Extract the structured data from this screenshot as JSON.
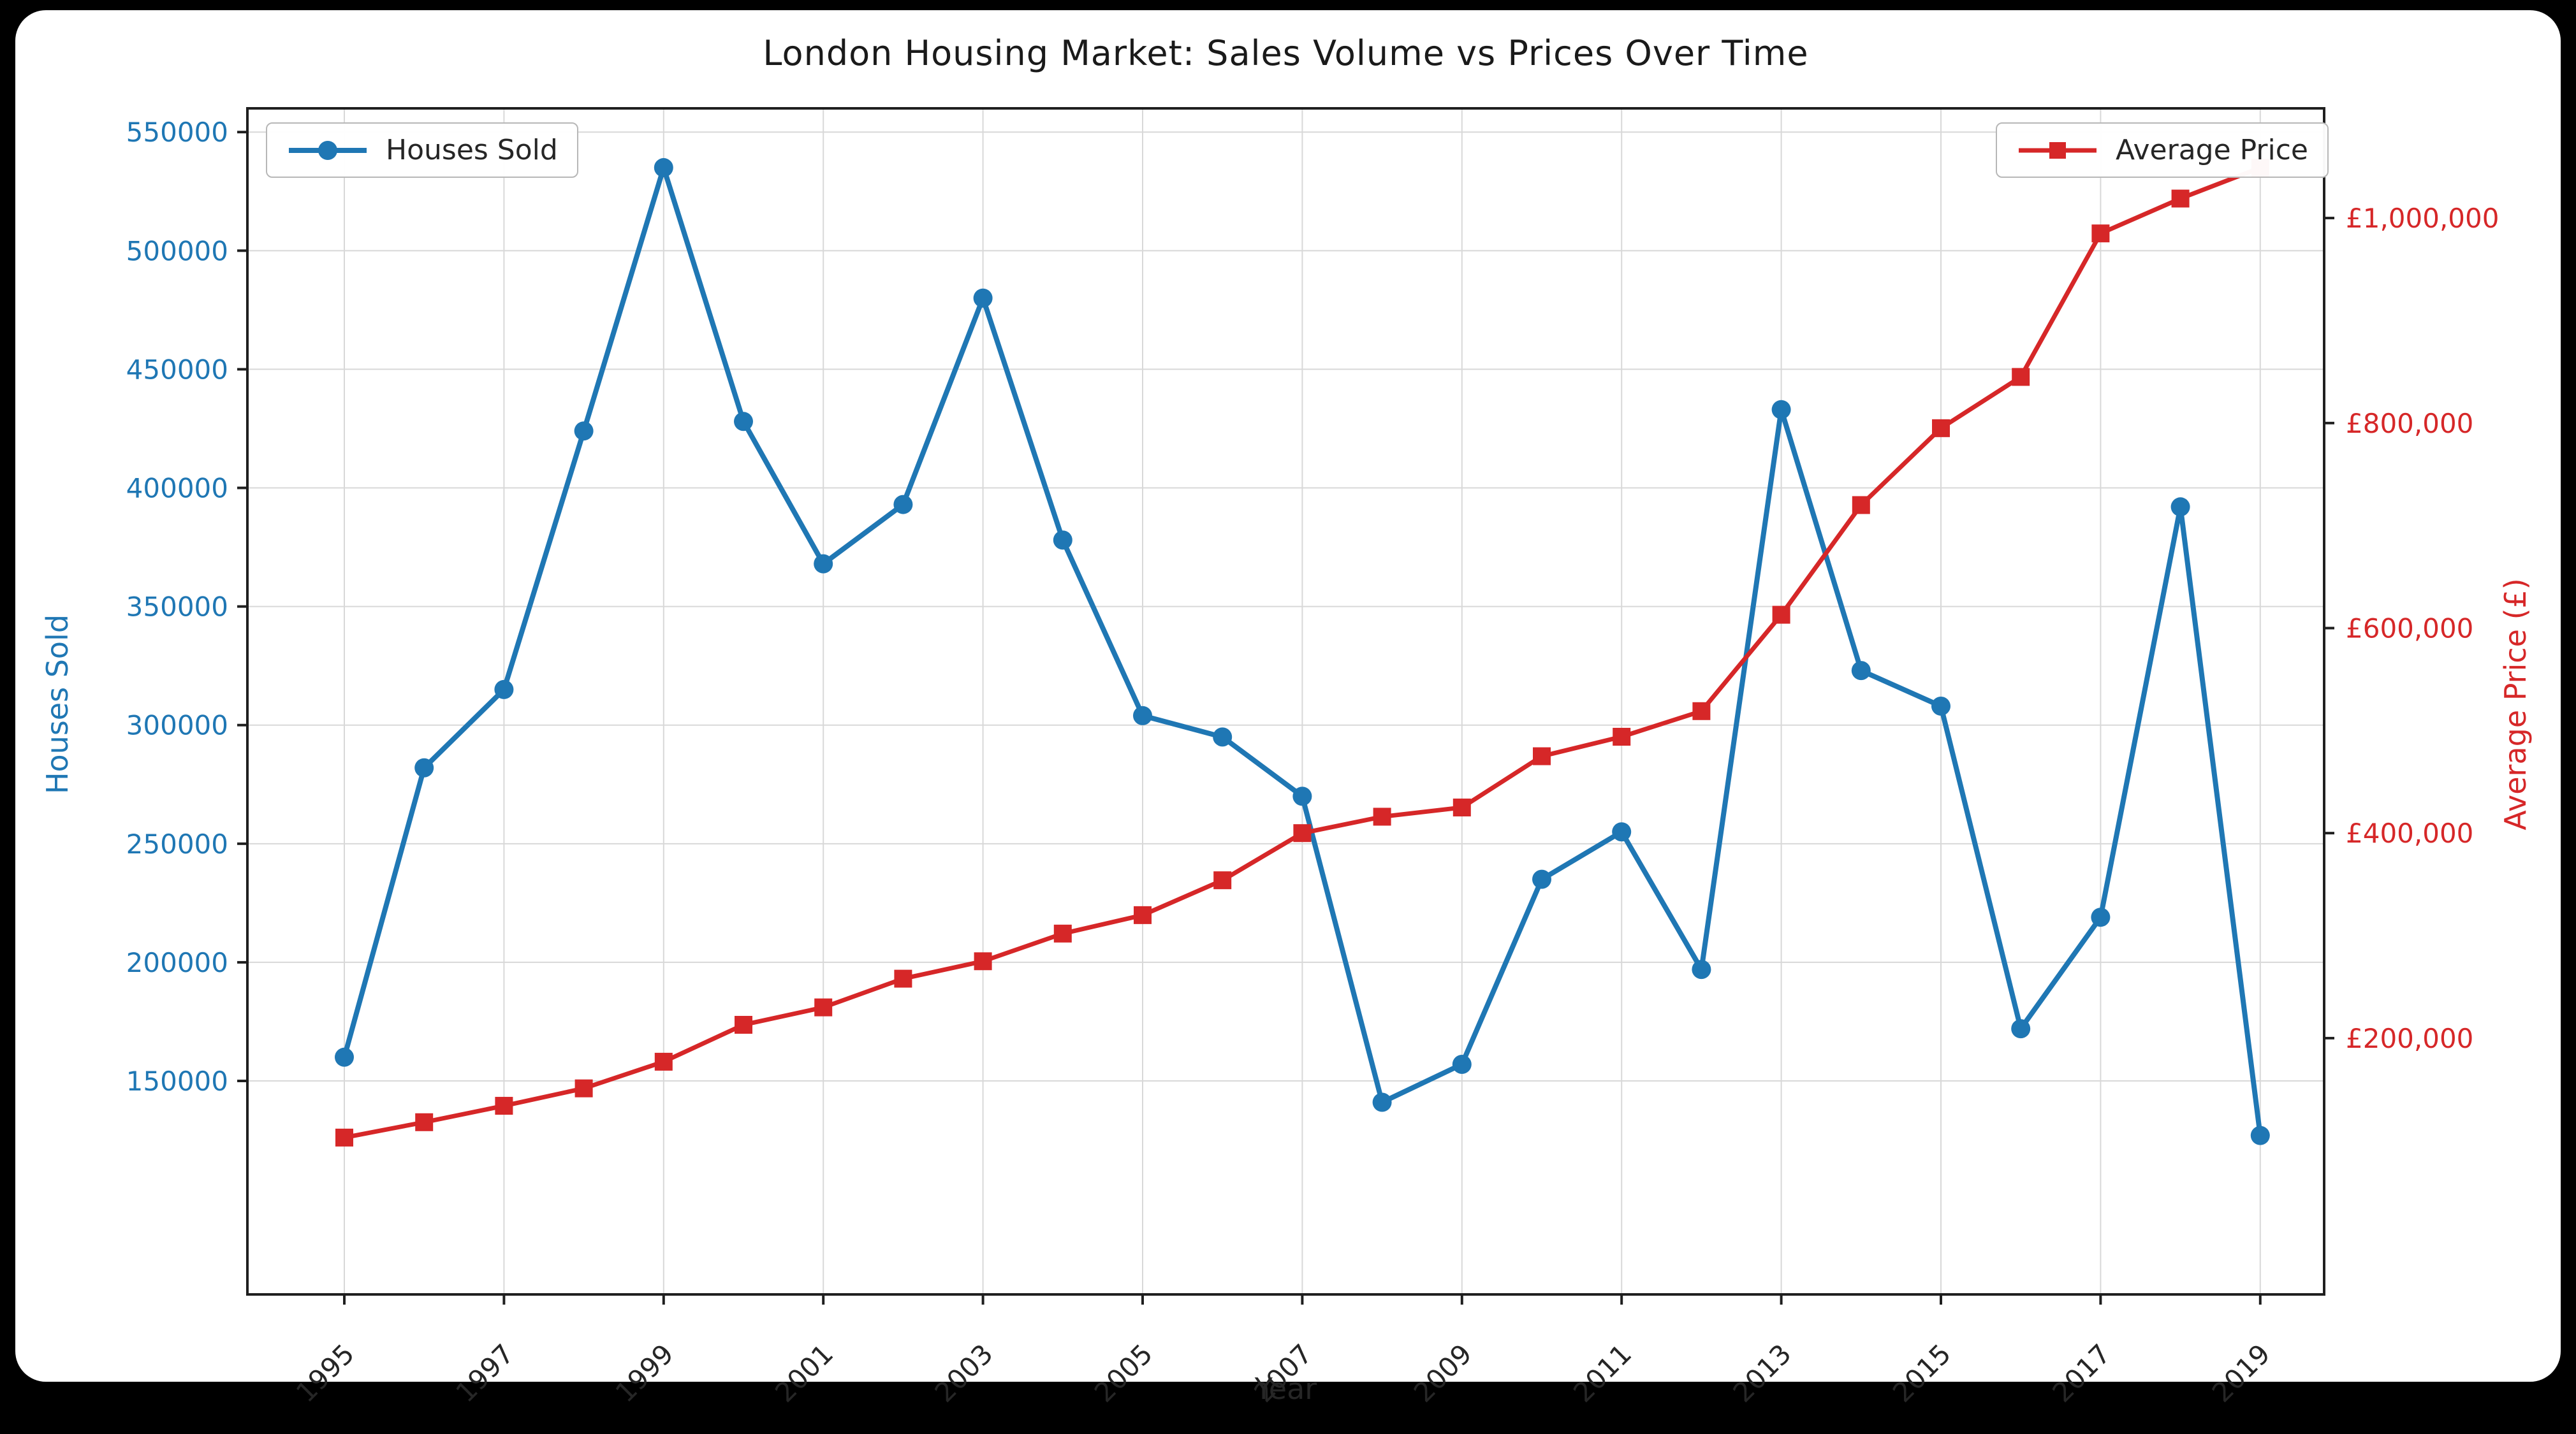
{
  "window": {
    "background": "#000000",
    "card_background": "#ffffff"
  },
  "chart_data": {
    "type": "line",
    "title": "London Housing Market: Sales Volume vs Prices Over Time",
    "xlabel": "Year",
    "grid": true,
    "x": [
      1995,
      1996,
      1997,
      1998,
      1999,
      2000,
      2001,
      2002,
      2003,
      2004,
      2005,
      2006,
      2007,
      2008,
      2009,
      2010,
      2011,
      2012,
      2013,
      2014,
      2015,
      2016,
      2017,
      2018,
      2019
    ],
    "xtick_labels": [
      "1995",
      "1997",
      "1999",
      "2001",
      "2003",
      "2005",
      "2007",
      "2009",
      "2011",
      "2013",
      "2015",
      "2017",
      "2019"
    ],
    "axes": {
      "left": {
        "label": "Houses Sold",
        "color": "#1f77b4",
        "ticks": [
          150000,
          200000,
          250000,
          300000,
          350000,
          400000,
          450000,
          500000,
          550000
        ],
        "tick_labels": [
          "150000",
          "200000",
          "250000",
          "300000",
          "350000",
          "400000",
          "450000",
          "500000",
          "550000"
        ],
        "range": [
          60000,
          560000
        ]
      },
      "right": {
        "label": "Average Price (£)",
        "color": "#d62728",
        "ticks": [
          200000,
          400000,
          600000,
          800000,
          1000000
        ],
        "tick_labels": [
          "£200,000",
          "£400,000",
          "£600,000",
          "£800,000",
          "£1,000,000"
        ],
        "range": [
          -50000,
          1107000
        ]
      }
    },
    "series": [
      {
        "name": "Houses Sold",
        "axis": "left",
        "color": "#1f77b4",
        "marker": "circle",
        "values": [
          160000,
          282000,
          315000,
          424000,
          535000,
          428000,
          368000,
          393000,
          480000,
          378000,
          304000,
          295000,
          270000,
          141000,
          157000,
          235000,
          255000,
          197000,
          433000,
          323000,
          308000,
          172000,
          219000,
          392000,
          127000
        ]
      },
      {
        "name": "Average Price",
        "axis": "right",
        "color": "#d62728",
        "marker": "square",
        "values": [
          103000,
          118000,
          134000,
          151000,
          177000,
          213000,
          230000,
          258000,
          275000,
          302000,
          320000,
          354000,
          400000,
          416000,
          425000,
          475000,
          494000,
          519000,
          613000,
          720000,
          795000,
          845000,
          985000,
          1019000,
          1049000
        ]
      }
    ],
    "legend": [
      {
        "label": "Houses Sold",
        "position": "upper-left"
      },
      {
        "label": "Average Price",
        "position": "upper-right"
      }
    ]
  }
}
